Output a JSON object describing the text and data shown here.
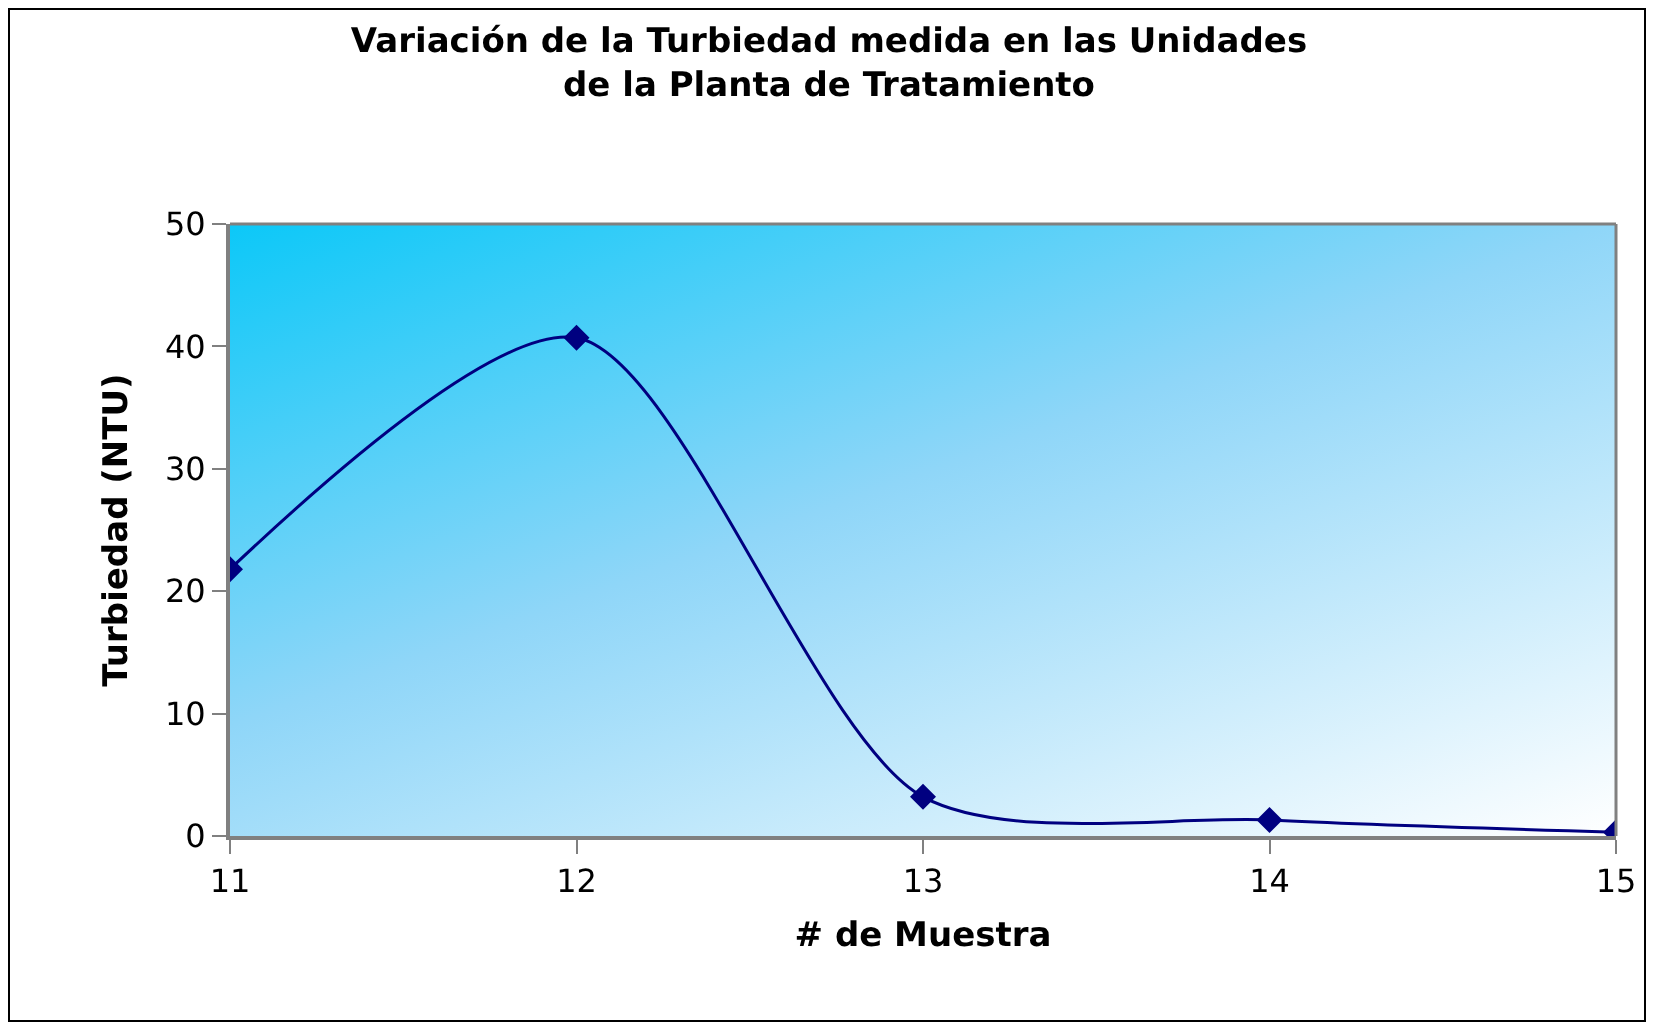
{
  "chart_data": {
    "type": "line",
    "title": "Variación de la Turbiedad medida en las Unidades\nde la Planta de Tratamiento",
    "xlabel": "# de Muestra",
    "ylabel": "Turbiedad (NTU)",
    "x": [
      11,
      12,
      13,
      14,
      15
    ],
    "series": [
      {
        "color": "#000080",
        "values": [
          21.8,
          40.7,
          3.2,
          1.3,
          0.3
        ]
      }
    ],
    "xlim": [
      11,
      15
    ],
    "xticks": [
      11,
      12,
      13,
      14,
      15
    ],
    "ylim": [
      0,
      50
    ],
    "yticks": [
      0,
      10,
      20,
      30,
      40,
      50
    ],
    "grid": false,
    "marker": "diamond",
    "line_style": "solid"
  }
}
